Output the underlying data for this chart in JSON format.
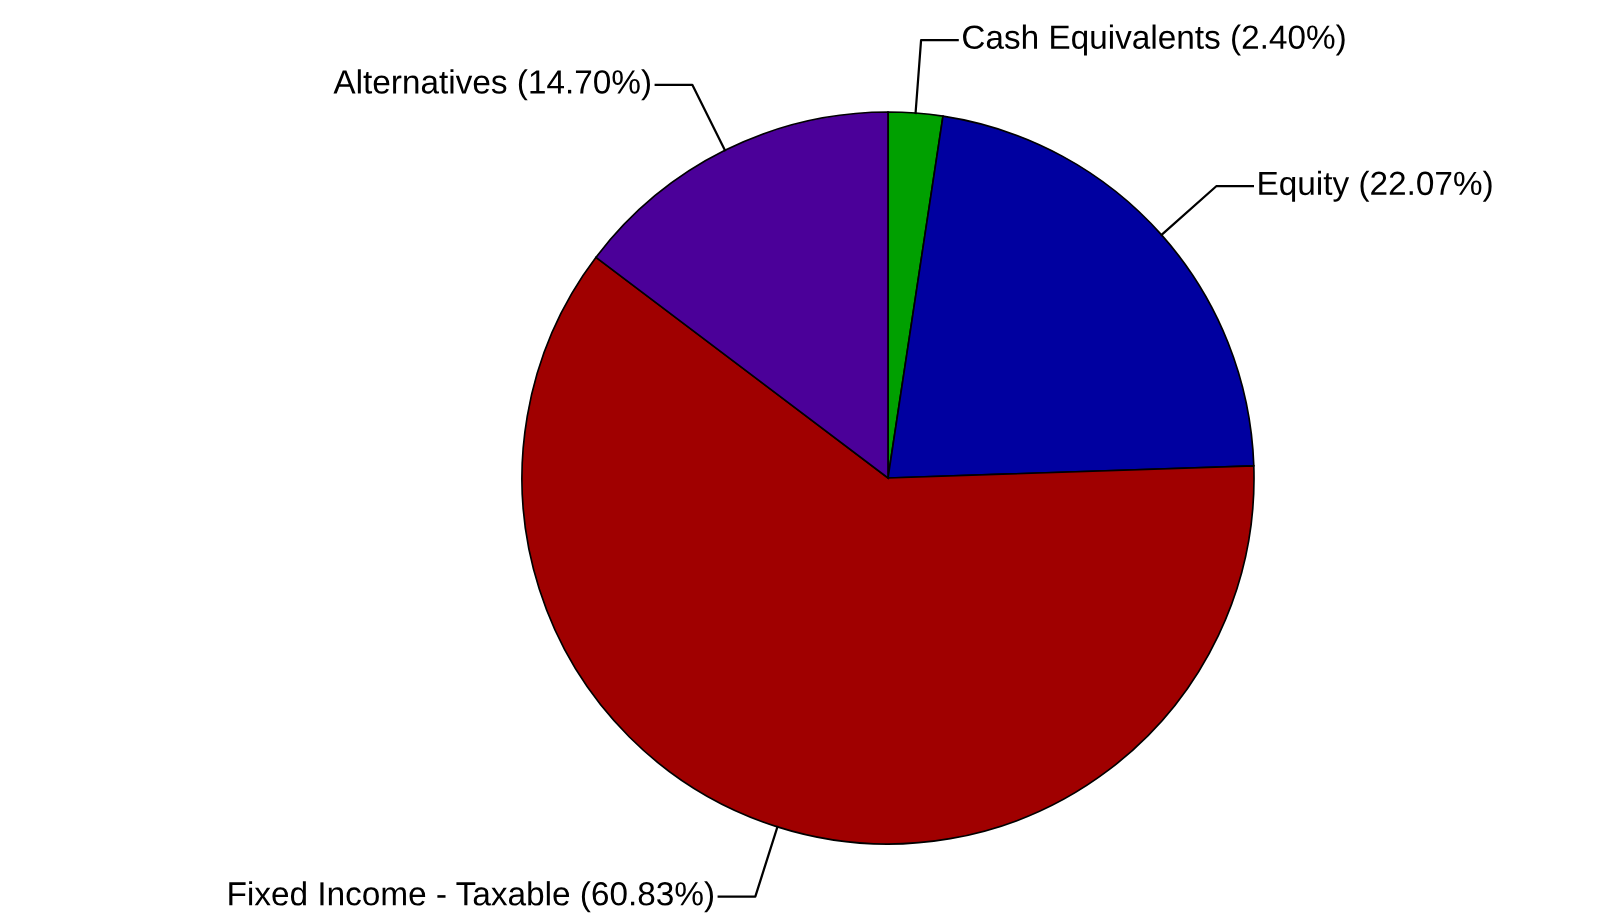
{
  "chart_data": {
    "type": "pie",
    "categories": [
      "Cash Equivalents",
      "Equity",
      "Fixed Income - Taxable",
      "Alternatives"
    ],
    "values": [
      2.4,
      22.07,
      60.83,
      14.7
    ],
    "value_labels": [
      "(2.40%)",
      "(22.07%)",
      "(60.83%)",
      "(14.70%)"
    ],
    "colors": [
      "#00a000",
      "#0000a0",
      "#a00000",
      "#4b0099"
    ],
    "legend": false
  }
}
